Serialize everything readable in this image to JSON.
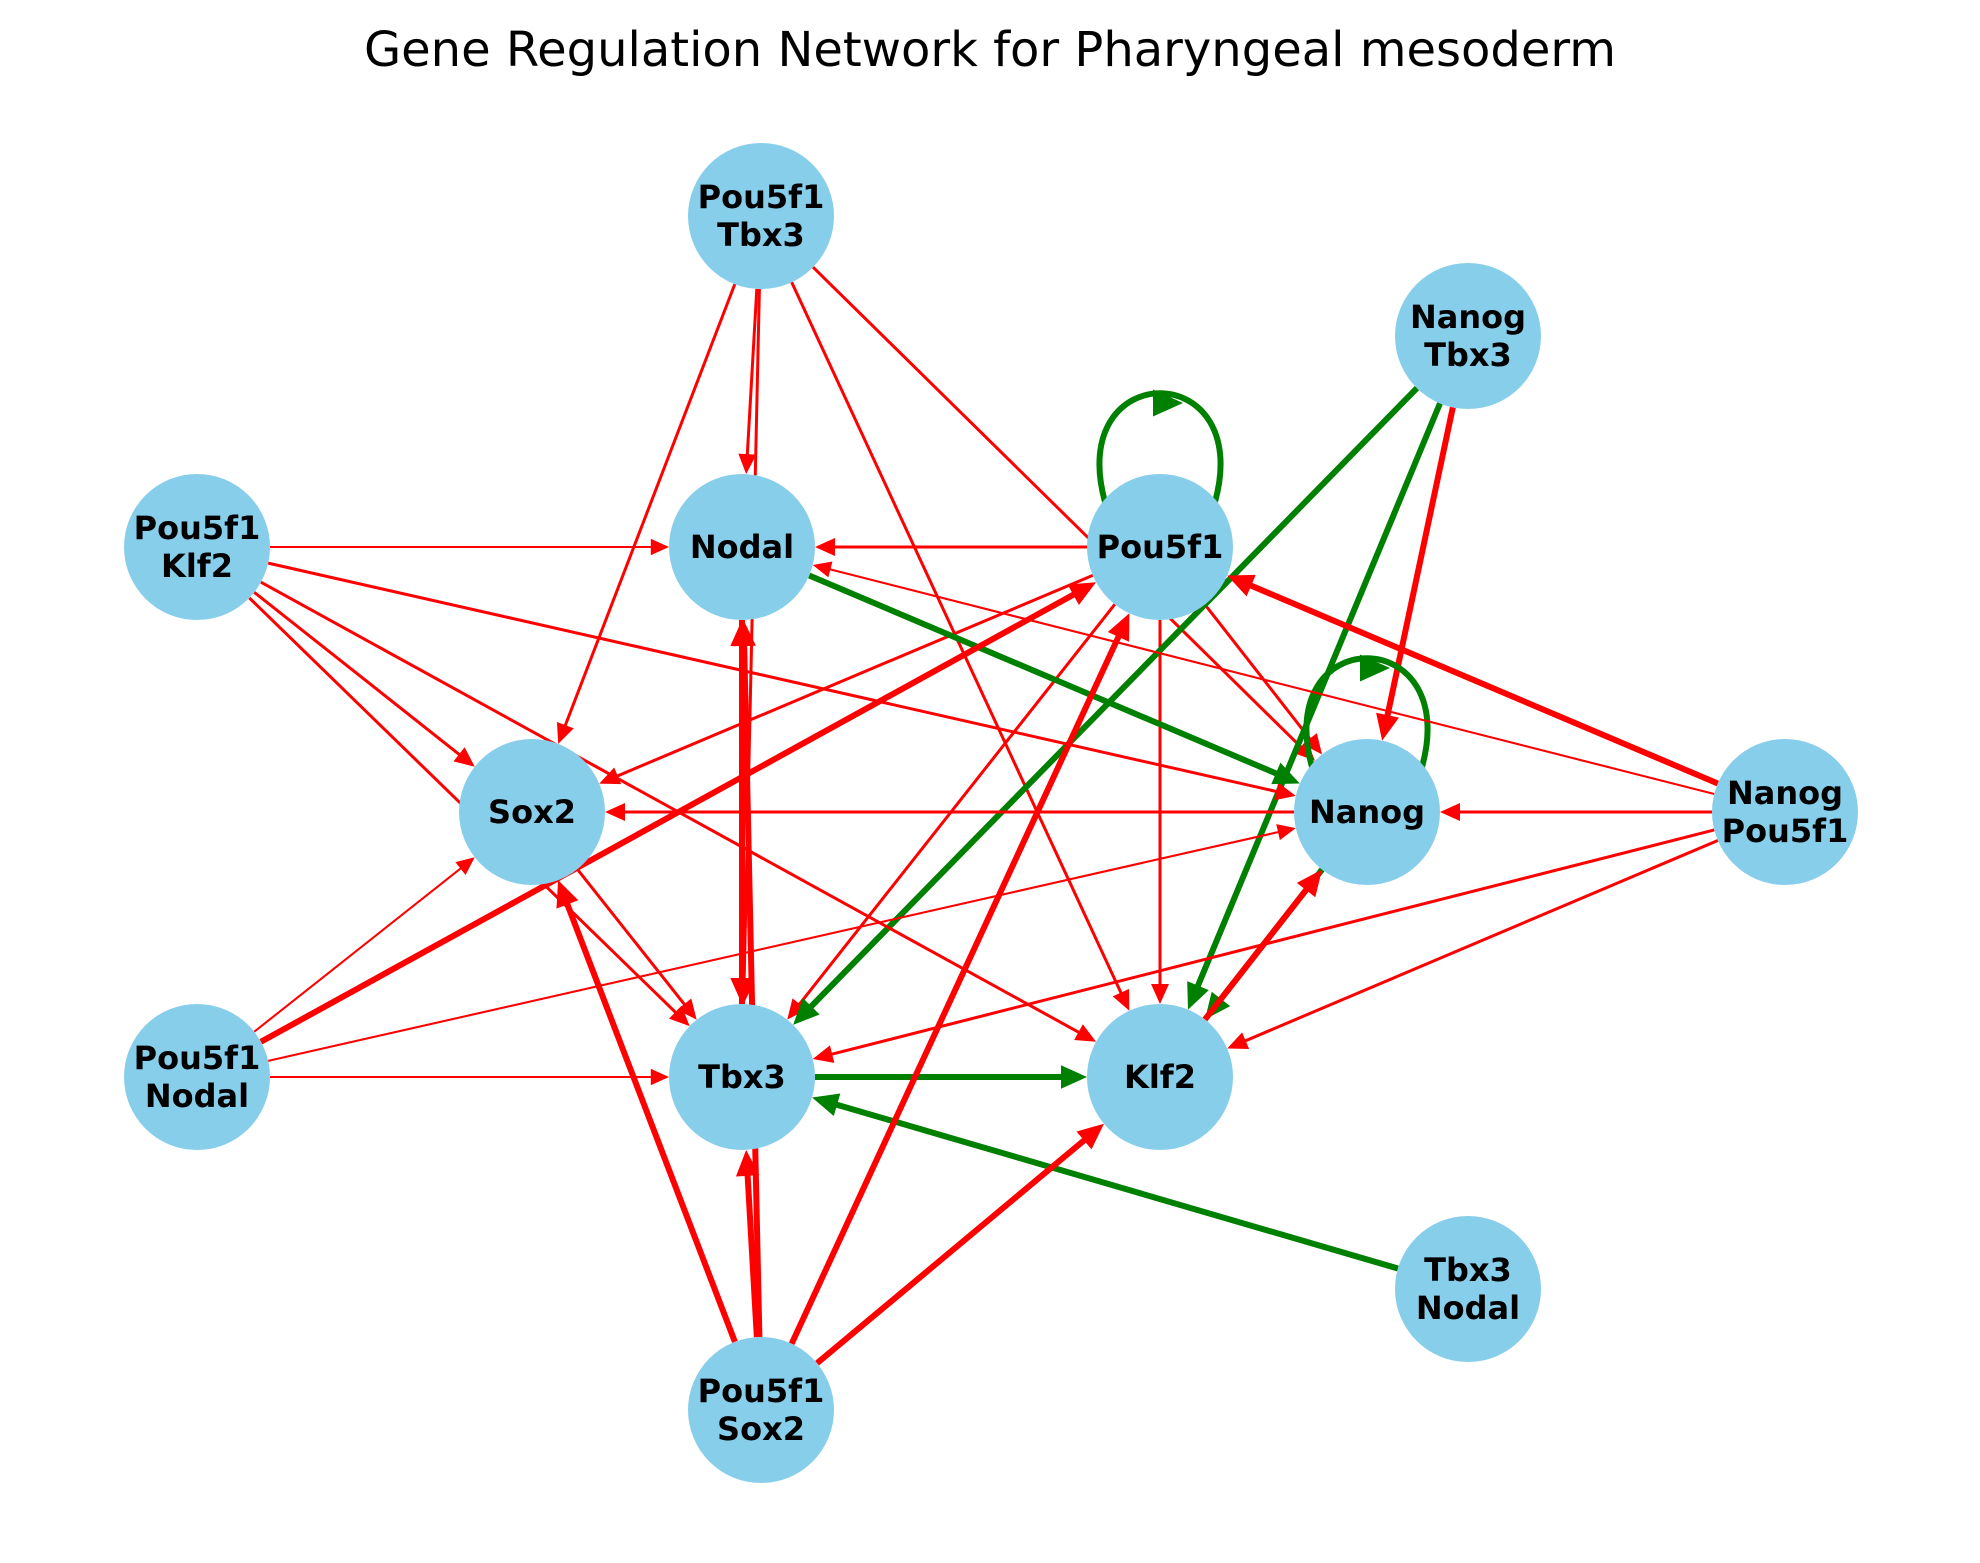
{
  "title": "Gene Regulation Network for Pharyngeal mesoderm",
  "colors": {
    "node_fill": "#87ceeb",
    "activation": "#008000",
    "repression": "#ff0000"
  },
  "nodes": [
    {
      "id": "pou5f1_tbx3",
      "lines": [
        "Pou5f1",
        "Tbx3"
      ]
    },
    {
      "id": "nanog_tbx3",
      "lines": [
        "Nanog",
        "Tbx3"
      ]
    },
    {
      "id": "pou5f1_klf2",
      "lines": [
        "Pou5f1",
        "Klf2"
      ]
    },
    {
      "id": "nodal",
      "lines": [
        "Nodal"
      ]
    },
    {
      "id": "pou5f1",
      "lines": [
        "Pou5f1"
      ]
    },
    {
      "id": "sox2",
      "lines": [
        "Sox2"
      ]
    },
    {
      "id": "nanog",
      "lines": [
        "Nanog"
      ]
    },
    {
      "id": "nanog_pou5f1",
      "lines": [
        "Nanog",
        "Pou5f1"
      ]
    },
    {
      "id": "pou5f1_nodal",
      "lines": [
        "Pou5f1",
        "Nodal"
      ]
    },
    {
      "id": "tbx3",
      "lines": [
        "Tbx3"
      ]
    },
    {
      "id": "klf2",
      "lines": [
        "Klf2"
      ]
    },
    {
      "id": "tbx3_nodal",
      "lines": [
        "Tbx3",
        "Nodal"
      ]
    },
    {
      "id": "pou5f1_sox2",
      "lines": [
        "Pou5f1",
        "Sox2"
      ]
    }
  ],
  "edges": [
    {
      "source": "pou5f1_tbx3",
      "target": "nodal",
      "type": "repression",
      "weight": 1
    },
    {
      "source": "pou5f1_tbx3",
      "target": "sox2",
      "type": "repression",
      "weight": 1
    },
    {
      "source": "pou5f1_tbx3",
      "target": "klf2",
      "type": "repression",
      "weight": 1
    },
    {
      "source": "pou5f1_tbx3",
      "target": "tbx3",
      "type": "repression",
      "weight": 1
    },
    {
      "source": "pou5f1_tbx3",
      "target": "nanog",
      "type": "repression",
      "weight": 1
    },
    {
      "source": "pou5f1",
      "target": "pou5f1",
      "type": "activation",
      "weight": 2
    },
    {
      "source": "pou5f1",
      "target": "nodal",
      "type": "repression",
      "weight": 1
    },
    {
      "source": "pou5f1",
      "target": "sox2",
      "type": "repression",
      "weight": 1
    },
    {
      "source": "pou5f1",
      "target": "nanog",
      "type": "repression",
      "weight": 1
    },
    {
      "source": "pou5f1",
      "target": "klf2",
      "type": "repression",
      "weight": 1
    },
    {
      "source": "pou5f1",
      "target": "tbx3",
      "type": "repression",
      "weight": 1
    },
    {
      "source": "nanog_tbx3",
      "target": "tbx3",
      "type": "activation",
      "weight": 2
    },
    {
      "source": "nanog_tbx3",
      "target": "klf2",
      "type": "activation",
      "weight": 2
    },
    {
      "source": "nanog_tbx3",
      "target": "nanog",
      "type": "repression",
      "weight": 2
    },
    {
      "source": "pou5f1_klf2",
      "target": "nodal",
      "type": "repression",
      "weight": 0.7
    },
    {
      "source": "pou5f1_klf2",
      "target": "sox2",
      "type": "repression",
      "weight": 1
    },
    {
      "source": "pou5f1_klf2",
      "target": "nanog",
      "type": "repression",
      "weight": 1
    },
    {
      "source": "pou5f1_klf2",
      "target": "klf2",
      "type": "repression",
      "weight": 1
    },
    {
      "source": "pou5f1_klf2",
      "target": "tbx3",
      "type": "repression",
      "weight": 1
    },
    {
      "source": "nodal",
      "target": "nanog",
      "type": "activation",
      "weight": 2
    },
    {
      "source": "nodal",
      "target": "tbx3",
      "type": "repression",
      "weight": 2
    },
    {
      "source": "nanog",
      "target": "nanog",
      "type": "activation",
      "weight": 2
    },
    {
      "source": "nanog",
      "target": "sox2",
      "type": "repression",
      "weight": 1
    },
    {
      "source": "nanog",
      "target": "klf2",
      "type": "activation",
      "weight": 2
    },
    {
      "source": "nanog_pou5f1",
      "target": "pou5f1",
      "type": "repression",
      "weight": 2
    },
    {
      "source": "nanog_pou5f1",
      "target": "nanog",
      "type": "repression",
      "weight": 1
    },
    {
      "source": "nanog_pou5f1",
      "target": "nodal",
      "type": "repression",
      "weight": 0.7
    },
    {
      "source": "nanog_pou5f1",
      "target": "tbx3",
      "type": "repression",
      "weight": 1
    },
    {
      "source": "nanog_pou5f1",
      "target": "klf2",
      "type": "repression",
      "weight": 1
    },
    {
      "source": "pou5f1_nodal",
      "target": "pou5f1",
      "type": "repression",
      "weight": 2
    },
    {
      "source": "pou5f1_nodal",
      "target": "sox2",
      "type": "repression",
      "weight": 0.7
    },
    {
      "source": "pou5f1_nodal",
      "target": "nanog",
      "type": "repression",
      "weight": 0.7
    },
    {
      "source": "pou5f1_nodal",
      "target": "tbx3",
      "type": "repression",
      "weight": 0.7
    },
    {
      "source": "tbx3",
      "target": "klf2",
      "type": "activation",
      "weight": 2
    },
    {
      "source": "tbx3",
      "target": "nodal",
      "type": "repression",
      "weight": 2
    },
    {
      "source": "klf2",
      "target": "nanog",
      "type": "repression",
      "weight": 2
    },
    {
      "source": "sox2",
      "target": "tbx3",
      "type": "repression",
      "weight": 1
    },
    {
      "source": "tbx3_nodal",
      "target": "tbx3",
      "type": "activation",
      "weight": 2
    },
    {
      "source": "pou5f1_sox2",
      "target": "sox2",
      "type": "repression",
      "weight": 2
    },
    {
      "source": "pou5f1_sox2",
      "target": "tbx3",
      "type": "repression",
      "weight": 2
    },
    {
      "source": "pou5f1_sox2",
      "target": "nodal",
      "type": "repression",
      "weight": 2
    },
    {
      "source": "pou5f1_sox2",
      "target": "pou5f1",
      "type": "repression",
      "weight": 2
    },
    {
      "source": "pou5f1_sox2",
      "target": "klf2",
      "type": "repression",
      "weight": 2
    }
  ]
}
